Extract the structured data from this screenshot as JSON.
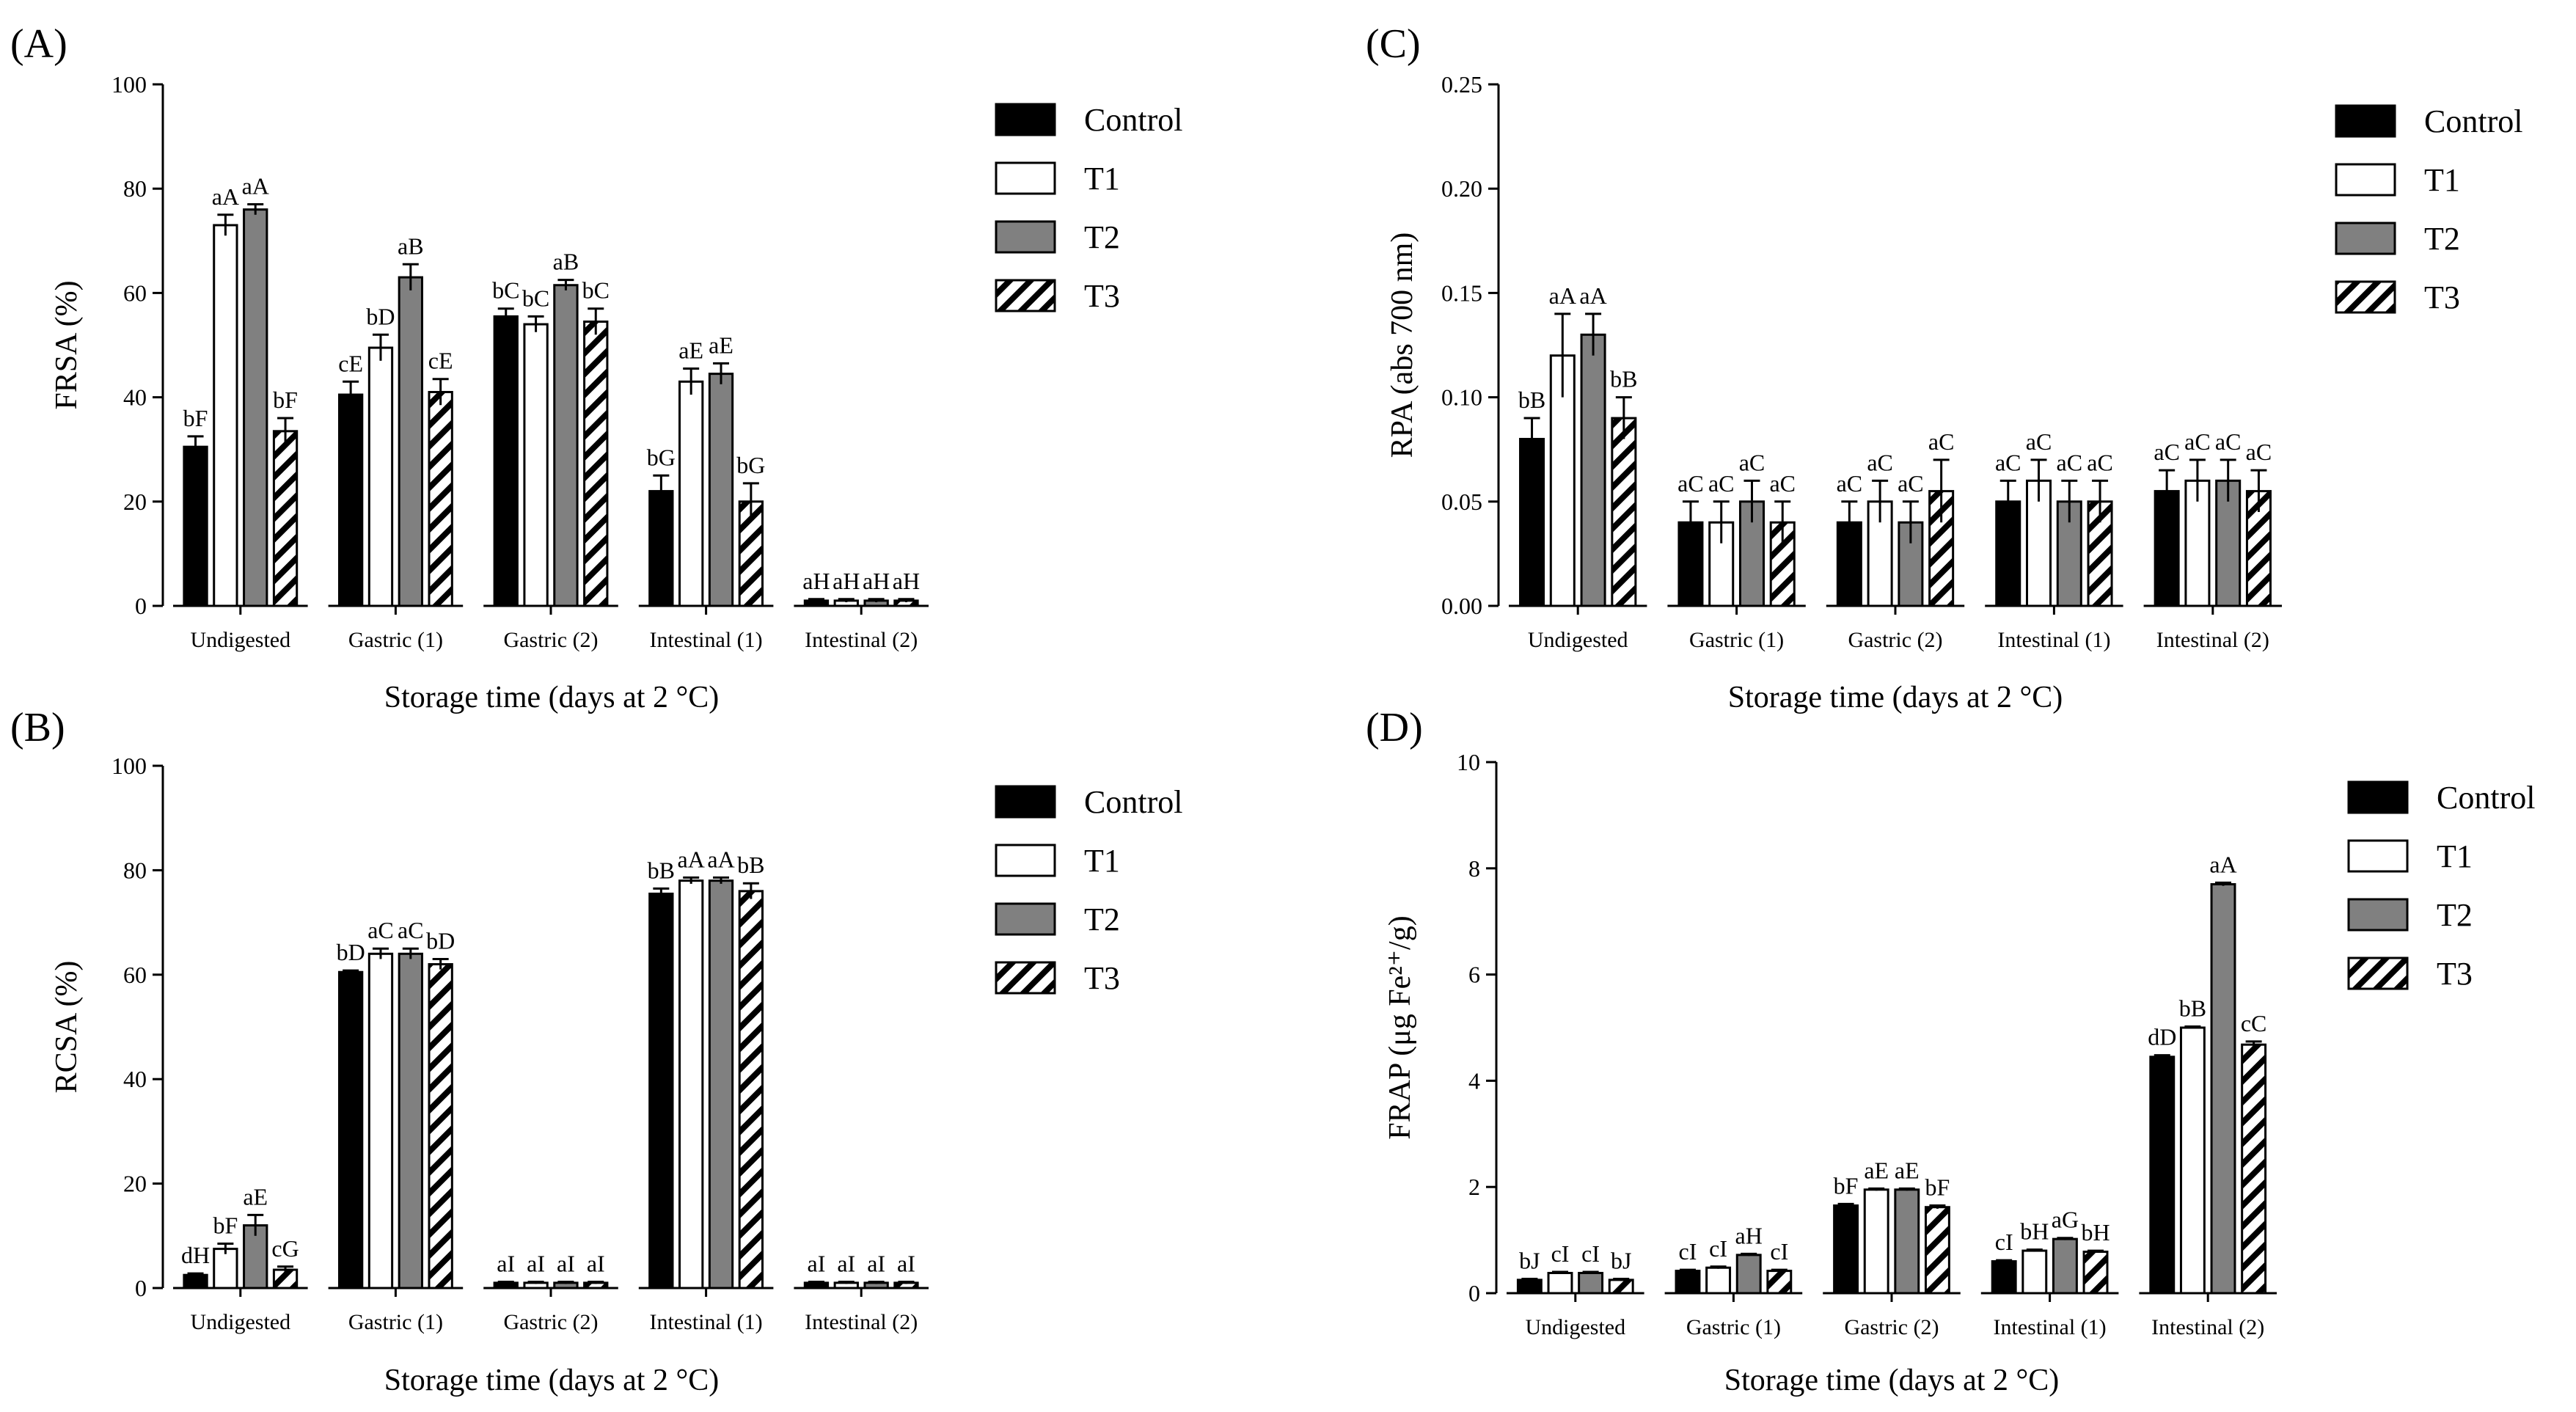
{
  "chart_data": [
    {
      "panel": "(A)",
      "type": "bar",
      "ylabel": "FRSA (%)",
      "xlabel": "Storage time (days at 2 °C)",
      "ylim": [
        0,
        100
      ],
      "yticks": [
        "0",
        "20",
        "40",
        "60",
        "80",
        "100"
      ],
      "categories": [
        "Undigested",
        "Gastric (1)",
        "Gastric (2)",
        "Intestinal (1)",
        "Intestinal (2)"
      ],
      "legend": [
        "Control",
        "T1",
        "T2",
        "T3"
      ],
      "series": [
        {
          "name": "Control",
          "values": [
            30.5,
            40.5,
            55.5,
            22,
            1
          ],
          "errors": [
            2,
            2.5,
            1.5,
            3,
            0.3
          ],
          "labels": [
            "bF",
            "cE",
            "bC",
            "bG",
            "aH"
          ]
        },
        {
          "name": "T1",
          "values": [
            73,
            49.5,
            54,
            43,
            1
          ],
          "errors": [
            2,
            2.5,
            1.5,
            2.5,
            0.3
          ],
          "labels": [
            "aA",
            "bD",
            "bC",
            "aE",
            "aH"
          ]
        },
        {
          "name": "T2",
          "values": [
            76,
            63,
            61.5,
            44.5,
            1
          ],
          "errors": [
            1,
            2.5,
            1,
            2,
            0.3
          ],
          "labels": [
            "aA",
            "aB",
            "aB",
            "aE",
            "aH"
          ]
        },
        {
          "name": "T3",
          "values": [
            33.5,
            41,
            54.5,
            20,
            1
          ],
          "errors": [
            2.5,
            2.5,
            2.5,
            3.5,
            0.3
          ],
          "labels": [
            "bF",
            "cE",
            "bC",
            "bG",
            "aH"
          ]
        }
      ]
    },
    {
      "panel": "(B)",
      "type": "bar",
      "ylabel": "RCSA (%)",
      "xlabel": "Storage time (days at 2 °C)",
      "ylim": [
        0,
        100
      ],
      "yticks": [
        "0",
        "20",
        "40",
        "60",
        "80",
        "100"
      ],
      "categories": [
        "Undigested",
        "Gastric (1)",
        "Gastric (2)",
        "Intestinal (1)",
        "Intestinal (2)"
      ],
      "legend": [
        "Control",
        "T1",
        "T2",
        "T3"
      ],
      "series": [
        {
          "name": "Control",
          "values": [
            2.5,
            60.5,
            1,
            75.5,
            1
          ],
          "errors": [
            0.3,
            0.3,
            0.2,
            1,
            0.2
          ],
          "labels": [
            "dH",
            "bD",
            "aI",
            "bB",
            "aI"
          ]
        },
        {
          "name": "T1",
          "values": [
            7.5,
            64,
            1,
            78,
            1
          ],
          "errors": [
            1,
            1,
            0.2,
            0.6,
            0.2
          ],
          "labels": [
            "bF",
            "aC",
            "aI",
            "aA",
            "aI"
          ]
        },
        {
          "name": "T2",
          "values": [
            12,
            64,
            1,
            78,
            1
          ],
          "errors": [
            2,
            1,
            0.2,
            0.6,
            0.2
          ],
          "labels": [
            "aE",
            "aC",
            "aI",
            "aA",
            "aI"
          ]
        },
        {
          "name": "T3",
          "values": [
            3.5,
            62,
            1,
            76,
            1
          ],
          "errors": [
            0.6,
            1,
            0.2,
            1.5,
            0.2
          ],
          "labels": [
            "cG",
            "bD",
            "aI",
            "bB",
            "aI"
          ]
        }
      ]
    },
    {
      "panel": "(C)",
      "type": "bar",
      "ylabel": "RPA (abs 700 nm)",
      "xlabel": "Storage time (days at 2 °C)",
      "ylim": [
        0,
        0.25
      ],
      "yticks": [
        "0.00",
        "0.05",
        "0.10",
        "0.15",
        "0.20",
        "0.25"
      ],
      "categories": [
        "Undigested",
        "Gastric (1)",
        "Gastric (2)",
        "Intestinal (1)",
        "Intestinal (2)"
      ],
      "legend": [
        "Control",
        "T1",
        "T2",
        "T3"
      ],
      "series": [
        {
          "name": "Control",
          "values": [
            0.08,
            0.04,
            0.04,
            0.05,
            0.055
          ],
          "errors": [
            0.01,
            0.01,
            0.01,
            0.01,
            0.01
          ],
          "labels": [
            "bB",
            "aC",
            "aC",
            "aC",
            "aC"
          ]
        },
        {
          "name": "T1",
          "values": [
            0.12,
            0.04,
            0.05,
            0.06,
            0.06
          ],
          "errors": [
            0.02,
            0.01,
            0.01,
            0.01,
            0.01
          ],
          "labels": [
            "aA",
            "aC",
            "aC",
            "aC",
            "aC"
          ]
        },
        {
          "name": "T2",
          "values": [
            0.13,
            0.05,
            0.04,
            0.05,
            0.06
          ],
          "errors": [
            0.01,
            0.01,
            0.01,
            0.01,
            0.01
          ],
          "labels": [
            "aA",
            "aC",
            "aC",
            "aC",
            "aC"
          ]
        },
        {
          "name": "T3",
          "values": [
            0.09,
            0.04,
            0.055,
            0.05,
            0.055
          ],
          "errors": [
            0.01,
            0.01,
            0.015,
            0.01,
            0.01
          ],
          "labels": [
            "bB",
            "aC",
            "aC",
            "aC",
            "aC"
          ]
        }
      ]
    },
    {
      "panel": "(D)",
      "type": "bar",
      "ylabel": "FRAP (μg Fe²⁺/g)",
      "xlabel": "Storage time (days at 2 °C)",
      "ylim": [
        0,
        10
      ],
      "yticks": [
        "0",
        "2",
        "4",
        "6",
        "8",
        "10"
      ],
      "categories": [
        "Undigested",
        "Gastric (1)",
        "Gastric (2)",
        "Intestinal (1)",
        "Intestinal (2)"
      ],
      "legend": [
        "Control",
        "T1",
        "T2",
        "T3"
      ],
      "series": [
        {
          "name": "Control",
          "values": [
            0.25,
            0.42,
            1.65,
            0.6,
            4.45
          ],
          "errors": [
            0.02,
            0.02,
            0.03,
            0.02,
            0.03
          ],
          "labels": [
            "bJ",
            "cI",
            "bF",
            "cI",
            "dD"
          ]
        },
        {
          "name": "T1",
          "values": [
            0.38,
            0.48,
            1.95,
            0.8,
            5
          ],
          "errors": [
            0.02,
            0.02,
            0.02,
            0.02,
            0.02
          ],
          "labels": [
            "cI",
            "cI",
            "aE",
            "bH",
            "bB"
          ]
        },
        {
          "name": "T2",
          "values": [
            0.38,
            0.72,
            1.95,
            1.02,
            7.7
          ],
          "errors": [
            0.02,
            0.02,
            0.02,
            0.02,
            0.03
          ],
          "labels": [
            "cI",
            "aH",
            "aE",
            "aG",
            "aA"
          ]
        },
        {
          "name": "T3",
          "values": [
            0.25,
            0.42,
            1.62,
            0.78,
            4.68
          ],
          "errors": [
            0.02,
            0.02,
            0.03,
            0.02,
            0.06
          ],
          "labels": [
            "bJ",
            "cI",
            "bF",
            "bH",
            "cC"
          ]
        }
      ]
    }
  ]
}
